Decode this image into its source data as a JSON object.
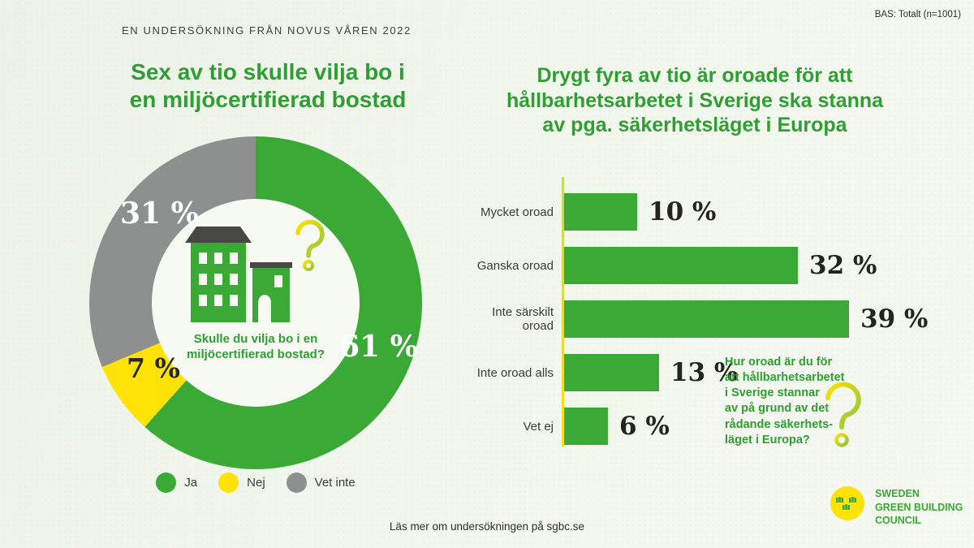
{
  "header": {
    "survey_label": "EN UNDERSÖKNING FRÅN NOVUS VÅREN 2022",
    "base_label": "BAS: Totalt (n=1001)"
  },
  "colors": {
    "green": "#3aa935",
    "yellow": "#ffe206",
    "gray": "#8e908f",
    "title_green": "#2f9e33",
    "roof_dark": "#474746"
  },
  "donut_section": {
    "title_lines": [
      "Sex av tio skulle vilja bo i",
      "en miljöcertifierad bostad"
    ],
    "center_question_lines": [
      "Skulle du vilja bo i en",
      "miljöcertifierad bostad?"
    ],
    "legend": [
      {
        "label": "Ja",
        "color": "#3aa935"
      },
      {
        "label": "Nej",
        "color": "#ffe206"
      },
      {
        "label": "Vet inte",
        "color": "#8e908f"
      }
    ]
  },
  "bar_section": {
    "title_lines": [
      "Drygt fyra av tio är oroade för att",
      "hållbarhetsarbetet i Sverige ska stanna",
      "av pga. säkerhetsläget i Europa"
    ],
    "annotation_lines": [
      "Hur oroad är du för",
      "att hållbarhetsarbetet",
      "i Sverige stannar",
      "av på grund av det",
      "rådande säkerhets-",
      "läget i Europa?"
    ]
  },
  "footer": {
    "link_text": "Läs mer om undersökningen på sgbc.se",
    "logo_lines": [
      "SWEDEN",
      "GREEN BUILDING",
      "COUNCIL"
    ]
  },
  "chart_data": [
    {
      "type": "pie",
      "subtype": "donut",
      "title": "Sex av tio skulle vilja bo i en miljöcertifierad bostad",
      "question": "Skulle du vilja bo i en miljöcertifierad bostad?",
      "labels": [
        "Ja",
        "Nej",
        "Vet inte"
      ],
      "values": [
        61,
        7,
        31
      ],
      "value_labels": [
        "61 %",
        "7 %",
        "31 %"
      ],
      "colors": [
        "#3aa935",
        "#ffe206",
        "#8e908f"
      ],
      "start_angle_deg": 0,
      "direction": "clockwise",
      "legend_position": "bottom"
    },
    {
      "type": "bar",
      "orientation": "horizontal",
      "title": "Drygt fyra av tio är oroade för att hållbarhetsarbetet i Sverige ska stanna av pga. säkerhetsläget i Europa",
      "categories": [
        "Mycket oroad",
        "Ganska oroad",
        "Inte särskilt oroad",
        "Inte oroad alls",
        "Vet ej"
      ],
      "values": [
        10,
        32,
        39,
        13,
        6
      ],
      "value_labels": [
        "10 %",
        "32 %",
        "39 %",
        "13 %",
        "6 %"
      ],
      "bar_color": "#3aa935",
      "xlim": [
        0,
        39
      ],
      "grid": false,
      "annotation": "Hur oroad är du för att hållbarhetsarbetet i Sverige stannar av på grund av det rådande säkerhetsläget i Europa?"
    }
  ]
}
